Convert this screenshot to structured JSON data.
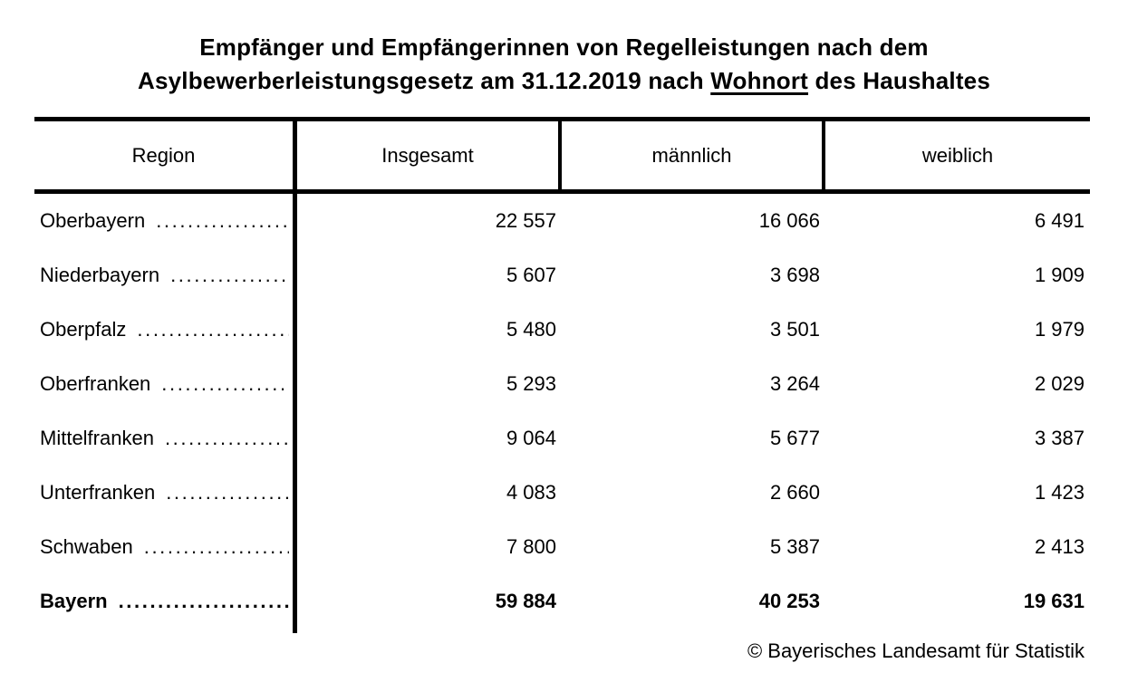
{
  "title": {
    "line1": "Empfänger und Empfängerinnen von Regelleistungen nach dem",
    "line2_before": "Asylbewerberleistungsgesetz am 31.12.2019 nach ",
    "line2_underlined": "Wohnort",
    "line2_after": " des Haushaltes"
  },
  "table": {
    "columns": [
      "Region",
      "Insgesamt",
      "männlich",
      "weiblich"
    ],
    "leader_dots": "............................................................",
    "rows": [
      {
        "region": "Oberbayern",
        "insgesamt": "22 557",
        "maennlich": "16 066",
        "weiblich": "6 491"
      },
      {
        "region": "Niederbayern",
        "insgesamt": "5 607",
        "maennlich": "3 698",
        "weiblich": "1 909"
      },
      {
        "region": "Oberpfalz",
        "insgesamt": "5 480",
        "maennlich": "3 501",
        "weiblich": "1 979"
      },
      {
        "region": "Oberfranken",
        "insgesamt": "5 293",
        "maennlich": "3 264",
        "weiblich": "2 029"
      },
      {
        "region": "Mittelfranken",
        "insgesamt": "9 064",
        "maennlich": "5 677",
        "weiblich": "3 387"
      },
      {
        "region": "Unterfranken",
        "insgesamt": "4 083",
        "maennlich": "2 660",
        "weiblich": "1 423"
      },
      {
        "region": "Schwaben",
        "insgesamt": "7 800",
        "maennlich": "5 387",
        "weiblich": "2 413"
      },
      {
        "region": "Bayern",
        "insgesamt": "59 884",
        "maennlich": "40 253",
        "weiblich": "19 631"
      }
    ]
  },
  "footer": {
    "copyright": "© Bayerisches Landesamt für Statistik"
  }
}
